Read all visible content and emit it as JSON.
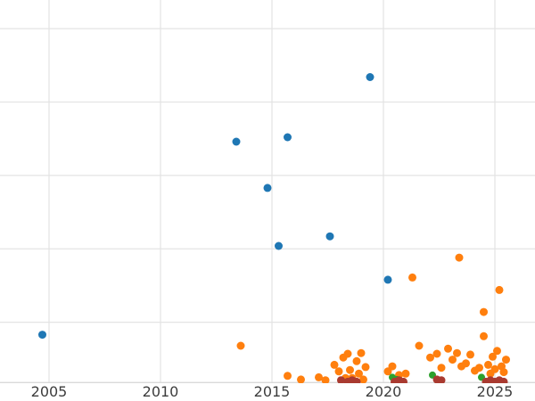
{
  "chart_data": {
    "type": "scatter",
    "title": "",
    "xlabel": "",
    "ylabel": "",
    "grid": true,
    "legend": "none",
    "background_color": "#ffffff",
    "gridline_color": "#e4e4e4",
    "axis_line_color": "#d9d9d9",
    "tick_label_color": "#3d3d3d",
    "xlim": [
      2002.8,
      2026.8
    ],
    "ylim": [
      0.17,
      5.39
    ],
    "x_ticks": [
      {
        "value": 2005,
        "label": "2005"
      },
      {
        "value": 2010,
        "label": "2010"
      },
      {
        "value": 2015,
        "label": "2015"
      },
      {
        "value": 2020,
        "label": "2020"
      },
      {
        "value": 2025,
        "label": "2025"
      }
    ],
    "y_gridlines": [
      1,
      2,
      3,
      4,
      5
    ],
    "series": [
      {
        "name": "blue-series",
        "color": "#1f77b4",
        "marker_size": 9,
        "points": [
          [
            2004.7,
            0.83
          ],
          [
            2013.4,
            3.46
          ],
          [
            2014.8,
            2.83
          ],
          [
            2015.3,
            2.04
          ],
          [
            2015.7,
            3.52
          ],
          [
            2017.6,
            2.17
          ],
          [
            2019.4,
            4.34
          ],
          [
            2020.2,
            1.58
          ]
        ]
      },
      {
        "name": "orange-series",
        "color": "#ff7f0e",
        "marker_size": 9,
        "points": [
          [
            2013.6,
            0.68
          ],
          [
            2015.7,
            0.27
          ],
          [
            2016.3,
            0.22
          ],
          [
            2017.1,
            0.25
          ],
          [
            2017.4,
            0.21
          ],
          [
            2017.8,
            0.42
          ],
          [
            2018.0,
            0.33
          ],
          [
            2018.2,
            0.52
          ],
          [
            2018.3,
            0.24
          ],
          [
            2018.4,
            0.57
          ],
          [
            2018.5,
            0.21
          ],
          [
            2018.5,
            0.35
          ],
          [
            2018.6,
            0.24
          ],
          [
            2018.8,
            0.47
          ],
          [
            2018.9,
            0.3
          ],
          [
            2019.0,
            0.58
          ],
          [
            2019.1,
            0.22
          ],
          [
            2019.2,
            0.39
          ],
          [
            2020.2,
            0.33
          ],
          [
            2020.4,
            0.4
          ],
          [
            2020.7,
            0.28
          ],
          [
            2021.0,
            0.3
          ],
          [
            2021.3,
            1.61
          ],
          [
            2021.6,
            0.68
          ],
          [
            2022.1,
            0.52
          ],
          [
            2022.4,
            0.57
          ],
          [
            2022.6,
            0.38
          ],
          [
            2022.9,
            0.64
          ],
          [
            2023.1,
            0.49
          ],
          [
            2023.3,
            0.58
          ],
          [
            2023.4,
            1.88
          ],
          [
            2023.5,
            0.4
          ],
          [
            2023.7,
            0.44
          ],
          [
            2023.9,
            0.56
          ],
          [
            2024.1,
            0.34
          ],
          [
            2024.3,
            0.38
          ],
          [
            2024.5,
            0.81
          ],
          [
            2024.5,
            1.14
          ],
          [
            2024.7,
            0.42
          ],
          [
            2024.8,
            0.3
          ],
          [
            2024.9,
            0.53
          ],
          [
            2025.0,
            0.36
          ],
          [
            2025.1,
            0.61
          ],
          [
            2025.2,
            1.44
          ],
          [
            2025.3,
            0.4
          ],
          [
            2025.4,
            0.32
          ],
          [
            2025.5,
            0.49
          ]
        ]
      },
      {
        "name": "green-series",
        "color": "#2ca02c",
        "marker_size": 8,
        "points": [
          [
            2020.4,
            0.25
          ],
          [
            2020.6,
            0.22
          ],
          [
            2022.2,
            0.28
          ],
          [
            2024.4,
            0.25
          ]
        ]
      },
      {
        "name": "dark-red-series",
        "color": "#a93a30",
        "marker_size": 9,
        "points": [
          [
            2018.1,
            0.21
          ],
          [
            2018.4,
            0.19
          ],
          [
            2018.6,
            0.21
          ],
          [
            2018.8,
            0.19
          ],
          [
            2020.5,
            0.19
          ],
          [
            2020.7,
            0.21
          ],
          [
            2020.9,
            0.19
          ],
          [
            2022.4,
            0.22
          ],
          [
            2022.6,
            0.21
          ],
          [
            2024.6,
            0.19
          ],
          [
            2024.8,
            0.21
          ],
          [
            2025.0,
            0.19
          ],
          [
            2025.2,
            0.21
          ],
          [
            2025.4,
            0.19
          ]
        ]
      }
    ]
  }
}
